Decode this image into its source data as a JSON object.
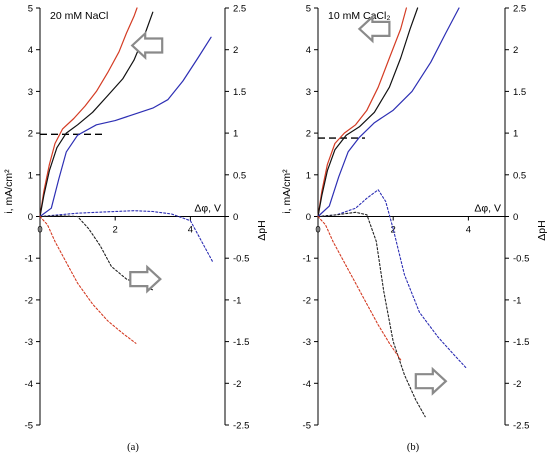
{
  "chart_data": [
    {
      "type": "line",
      "panel_caption": "(a)",
      "title": "20 mM NaCl",
      "xlabel": "Δφ, V",
      "ylabel_left": "i, mA/cm²",
      "ylabel_right": "ΔpH",
      "x_ticks": [
        "0",
        "2",
        "4"
      ],
      "y_left_ticks": [
        "5",
        "4",
        "3",
        "2",
        "1",
        "0",
        "-1",
        "-2",
        "-3",
        "-4",
        "-5"
      ],
      "y_right_ticks": [
        "2.5",
        "2",
        "1.5",
        "1",
        "0.5",
        "0",
        "-0.5",
        "-1",
        "-1.5",
        "-2",
        "-2.5"
      ],
      "xlim": [
        0,
        5
      ],
      "ylim_left": [
        -5,
        5
      ],
      "ylim_right": [
        -2.5,
        2.5
      ],
      "limiting_current_left": 1.97,
      "limiting_current_xrange": [
        0,
        1.65
      ],
      "colors": {
        "red": "#d43c24",
        "black": "#111111",
        "blue": "#2d2fb4",
        "dark": "#222222"
      },
      "series": [
        {
          "axis": "left",
          "color_key": "red",
          "dash": "solid",
          "x": [
            0,
            0.1,
            0.25,
            0.4,
            0.6,
            0.9,
            1.2,
            1.5,
            1.8,
            2.1,
            2.3,
            2.5,
            2.58
          ],
          "y": [
            0,
            0.6,
            1.25,
            1.75,
            2.1,
            2.35,
            2.65,
            3.0,
            3.45,
            3.95,
            4.4,
            4.8,
            5.0
          ]
        },
        {
          "axis": "left",
          "color_key": "black",
          "dash": "solid",
          "x": [
            0,
            0.1,
            0.25,
            0.45,
            0.7,
            1.0,
            1.4,
            1.8,
            2.2,
            2.5,
            2.8,
            3.0
          ],
          "y": [
            0,
            0.5,
            1.1,
            1.65,
            2.0,
            2.2,
            2.5,
            2.9,
            3.3,
            3.75,
            4.4,
            4.9
          ]
        },
        {
          "axis": "left",
          "color_key": "blue",
          "dash": "solid",
          "x": [
            0,
            0.3,
            0.5,
            0.7,
            1.0,
            1.5,
            2.0,
            2.5,
            3.0,
            3.4,
            3.8,
            4.2,
            4.55
          ],
          "y": [
            0,
            0.2,
            0.9,
            1.55,
            1.95,
            2.2,
            2.3,
            2.45,
            2.6,
            2.8,
            3.25,
            3.8,
            4.3
          ]
        },
        {
          "axis": "right",
          "color_key": "blue",
          "dash": "dashed",
          "x": [
            0,
            0.5,
            1.0,
            1.5,
            2.0,
            2.5,
            3.0,
            3.5,
            4.0,
            4.3,
            4.6
          ],
          "y": [
            0,
            0.02,
            0.04,
            0.05,
            0.06,
            0.07,
            0.06,
            0.03,
            -0.05,
            -0.3,
            -0.55
          ]
        },
        {
          "axis": "right",
          "color_key": "dark",
          "dash": "dashed",
          "x": [
            0,
            0.5,
            1.0,
            1.3,
            1.6,
            1.9,
            2.3,
            2.7,
            3.0
          ],
          "y": [
            0,
            0.01,
            0.0,
            -0.15,
            -0.35,
            -0.6,
            -0.75,
            -0.82,
            -0.88
          ]
        },
        {
          "axis": "right",
          "color_key": "red",
          "dash": "dashed",
          "x": [
            0,
            0.2,
            0.4,
            0.7,
            1.0,
            1.4,
            1.8,
            2.2,
            2.55
          ],
          "y": [
            0,
            -0.1,
            -0.3,
            -0.55,
            -0.8,
            -1.05,
            -1.25,
            -1.4,
            -1.52
          ]
        }
      ],
      "arrows": [
        {
          "direction": "left",
          "x": 2.85,
          "y": 4.1
        },
        {
          "direction": "right",
          "x": 2.8,
          "y": -1.5
        }
      ]
    },
    {
      "type": "line",
      "panel_caption": "(b)",
      "title": "10 mM CaCl₂",
      "xlabel": "Δφ, V",
      "ylabel_left": "i, mA/cm²",
      "ylabel_right": "ΔpH",
      "x_ticks": [
        "0",
        "2",
        "4"
      ],
      "y_left_ticks": [
        "5",
        "4",
        "3",
        "2",
        "1",
        "0",
        "-1",
        "-2",
        "-3",
        "-4",
        "-5"
      ],
      "y_right_ticks": [
        "2.5",
        "2",
        "1.5",
        "1",
        "0.5",
        "0",
        "-0.5",
        "-1",
        "-1.5",
        "-2",
        "-2.5"
      ],
      "xlim": [
        0,
        5
      ],
      "ylim_left": [
        -5,
        5
      ],
      "ylim_right": [
        -2.5,
        2.5
      ],
      "limiting_current_left": 1.88,
      "limiting_current_xrange": [
        0,
        1.25
      ],
      "colors": {
        "red": "#d43c24",
        "black": "#111111",
        "blue": "#2d2fb4",
        "dark": "#222222"
      },
      "series": [
        {
          "axis": "left",
          "color_key": "red",
          "dash": "solid",
          "x": [
            0,
            0.1,
            0.25,
            0.45,
            0.7,
            1.0,
            1.3,
            1.6,
            1.9,
            2.2,
            2.35
          ],
          "y": [
            0,
            0.6,
            1.25,
            1.75,
            2.0,
            2.2,
            2.55,
            3.1,
            3.8,
            4.5,
            5.0
          ]
        },
        {
          "axis": "left",
          "color_key": "black",
          "dash": "solid",
          "x": [
            0,
            0.1,
            0.25,
            0.45,
            0.75,
            1.1,
            1.5,
            1.9,
            2.2,
            2.45,
            2.65
          ],
          "y": [
            0,
            0.5,
            1.1,
            1.6,
            1.95,
            2.15,
            2.5,
            3.1,
            3.8,
            4.5,
            5.0
          ]
        },
        {
          "axis": "left",
          "color_key": "blue",
          "dash": "solid",
          "x": [
            0,
            0.3,
            0.55,
            0.8,
            1.1,
            1.5,
            2.0,
            2.5,
            3.0,
            3.4,
            3.75
          ],
          "y": [
            0,
            0.25,
            0.95,
            1.55,
            1.9,
            2.25,
            2.55,
            3.0,
            3.7,
            4.4,
            5.0
          ]
        },
        {
          "axis": "right",
          "color_key": "blue",
          "dash": "dashed",
          "x": [
            0,
            0.5,
            1.0,
            1.3,
            1.6,
            1.8,
            2.0,
            2.3,
            2.7,
            3.2,
            3.6,
            3.95
          ],
          "y": [
            0,
            0.02,
            0.1,
            0.22,
            0.32,
            0.18,
            -0.15,
            -0.7,
            -1.15,
            -1.45,
            -1.65,
            -1.82
          ]
        },
        {
          "axis": "right",
          "color_key": "dark",
          "dash": "dashed",
          "x": [
            0,
            0.5,
            1.0,
            1.3,
            1.55,
            1.75,
            2.0,
            2.3,
            2.6,
            2.85
          ],
          "y": [
            0,
            0.02,
            0.05,
            0.02,
            -0.3,
            -0.9,
            -1.5,
            -1.9,
            -2.2,
            -2.4
          ]
        },
        {
          "axis": "right",
          "color_key": "red",
          "dash": "dashed",
          "x": [
            0,
            0.2,
            0.4,
            0.7,
            1.0,
            1.3,
            1.6,
            1.9,
            2.2
          ],
          "y": [
            0,
            -0.1,
            -0.3,
            -0.55,
            -0.8,
            -1.05,
            -1.3,
            -1.52,
            -1.72
          ]
        }
      ],
      "arrows": [
        {
          "direction": "left",
          "x": 1.5,
          "y": 4.5
        },
        {
          "direction": "right",
          "x": 3.0,
          "y": -3.95
        }
      ]
    }
  ]
}
